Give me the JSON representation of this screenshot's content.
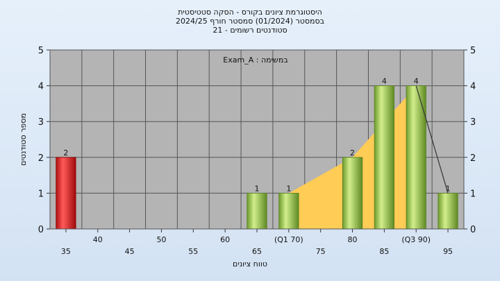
{
  "chart_data": {
    "type": "bar",
    "title_lines": [
      "היסטוגרמת ציונים בקורס - הסקה סטטיסטית",
      "בסמסטר  (01/2024)  סמסטר חורף 2024/25",
      "סטודנטים רשומים - 21"
    ],
    "annotation": "Exam_A : במשימה",
    "xlabel": "טווח ציונים",
    "ylabel": "מספר סטודנטים",
    "ylim": [
      0,
      5
    ],
    "y_ticks": [
      "0",
      "1",
      "2",
      "3",
      "4",
      "5"
    ],
    "x_ticks": [
      {
        "x": 35,
        "label": "35"
      },
      {
        "x": 40,
        "label": "40"
      },
      {
        "x": 45,
        "label": "45"
      },
      {
        "x": 50,
        "label": "50"
      },
      {
        "x": 55,
        "label": "55"
      },
      {
        "x": 60,
        "label": "60"
      },
      {
        "x": 65,
        "label": "65"
      },
      {
        "x": 70,
        "label": "(Q1 70)"
      },
      {
        "x": 75,
        "label": "75"
      },
      {
        "x": 80,
        "label": "80"
      },
      {
        "x": 85,
        "label": "85"
      },
      {
        "x": 90,
        "label": "(Q3 90)"
      },
      {
        "x": 95,
        "label": "95"
      }
    ],
    "bars": [
      {
        "x": 35,
        "value": 2,
        "label": "2",
        "color": "red"
      },
      {
        "x": 65,
        "value": 1,
        "label": "1",
        "color": "green"
      },
      {
        "x": 70,
        "value": 1,
        "label": "1",
        "color": "green"
      },
      {
        "x": 80,
        "value": 2,
        "label": "2",
        "color": "green"
      },
      {
        "x": 85,
        "value": 4,
        "label": "4",
        "color": "green"
      },
      {
        "x": 90,
        "value": 4,
        "label": "4",
        "color": "green"
      },
      {
        "x": 95,
        "value": 1,
        "label": "1",
        "color": "green"
      }
    ],
    "area": {
      "points": [
        [
          70,
          1
        ],
        [
          80,
          2
        ],
        [
          85,
          3
        ],
        [
          90,
          4
        ]
      ],
      "color": "#ffcc55"
    },
    "trend_line": {
      "points": [
        [
          90,
          4
        ],
        [
          95,
          1
        ]
      ]
    },
    "x_domain": [
      32.5,
      97.5
    ],
    "grid": true,
    "colors": {
      "plot_bg": "#b4b4b4",
      "grid": "#555555",
      "red": "#dd2020",
      "green": "#8ec63f"
    }
  }
}
